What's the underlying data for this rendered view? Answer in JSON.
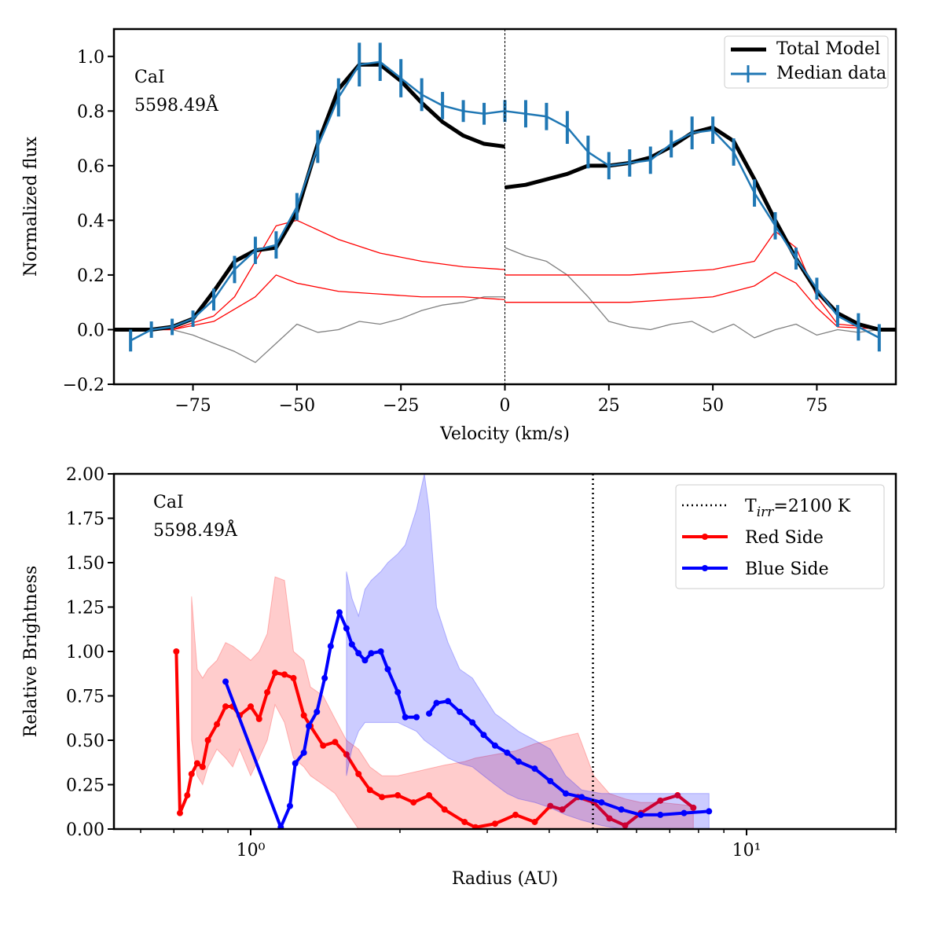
{
  "chart_data": [
    {
      "type": "line",
      "annotation": [
        "CaI",
        "5598.49Å"
      ],
      "xlabel": "Velocity (km/s)",
      "ylabel": "Normalized flux",
      "xlim": [
        -94,
        94
      ],
      "ylim": [
        -0.2,
        1.1
      ],
      "xticks": [
        {
          "value": -75,
          "label": "−75"
        },
        {
          "value": -50,
          "label": "−50"
        },
        {
          "value": -25,
          "label": "−25"
        },
        0,
        25,
        50,
        75
      ],
      "yticks": [
        {
          "value": -0.2,
          "label": "−0.2"
        },
        {
          "value": 0,
          "label": "0.0"
        },
        0.2,
        0.4,
        0.6,
        0.8,
        {
          "value": 1,
          "label": "1.0"
        }
      ],
      "vline": 0,
      "legend": "upper right",
      "series": [
        {
          "color": "#808080",
          "x": [
            -80,
            -75,
            -70,
            -65,
            -60,
            -55,
            -50,
            -45,
            -40,
            -35,
            -30,
            -25,
            -20,
            -15,
            -10,
            -5,
            0,
            0,
            0,
            5,
            10,
            15,
            20,
            25,
            30,
            35,
            40,
            45,
            50,
            55,
            60,
            65,
            70,
            75,
            80,
            85,
            90
          ],
          "values": [
            0,
            -0.02,
            -0.05,
            -0.08,
            -0.12,
            -0.05,
            0.02,
            -0.01,
            0,
            0.03,
            0.02,
            0.04,
            0.07,
            0.09,
            0.1,
            0.12,
            0.12,
            null,
            0.3,
            0.27,
            0.25,
            0.2,
            0.12,
            0.03,
            0.01,
            0,
            0.02,
            0.03,
            -0.01,
            0.02,
            -0.03,
            0,
            0.02,
            -0.02,
            0,
            -0.01,
            0
          ]
        },
        {
          "color": "#ff0000",
          "x": [
            -94,
            -80,
            -70,
            -65,
            -60,
            -55,
            -50,
            -40,
            -30,
            -20,
            -10,
            0,
            0,
            0,
            10,
            20,
            30,
            40,
            50,
            60,
            65,
            70,
            75,
            80,
            94
          ],
          "values": [
            0,
            0,
            0.05,
            0.12,
            0.25,
            0.38,
            0.4,
            0.33,
            0.28,
            0.25,
            0.23,
            0.22,
            null,
            0.2,
            0.2,
            0.2,
            0.2,
            0.21,
            0.22,
            0.25,
            0.36,
            0.3,
            0.12,
            0.02,
            0
          ]
        },
        {
          "color": "#ff0000",
          "x": [
            -94,
            -80,
            -70,
            -60,
            -55,
            -50,
            -40,
            -30,
            -20,
            -10,
            0,
            0,
            0,
            10,
            20,
            30,
            40,
            50,
            60,
            65,
            70,
            75,
            80,
            94
          ],
          "values": [
            0,
            0,
            0.03,
            0.12,
            0.2,
            0.17,
            0.14,
            0.13,
            0.12,
            0.12,
            0.11,
            null,
            0.1,
            0.1,
            0.1,
            0.1,
            0.11,
            0.12,
            0.16,
            0.21,
            0.17,
            0.08,
            0.01,
            0
          ]
        },
        {
          "name": "Total Model",
          "color": "#000000",
          "x": [
            -94,
            -85,
            -80,
            -75,
            -70,
            -65,
            -60,
            -55,
            -50,
            -45,
            -40,
            -35,
            -30,
            -25,
            -20,
            -15,
            -10,
            -5,
            0,
            0,
            0,
            5,
            10,
            15,
            20,
            25,
            30,
            35,
            40,
            45,
            50,
            55,
            60,
            65,
            70,
            75,
            80,
            85,
            90,
            94
          ],
          "values": [
            0,
            0,
            0.01,
            0.04,
            0.14,
            0.25,
            0.29,
            0.3,
            0.43,
            0.68,
            0.88,
            0.97,
            0.97,
            0.91,
            0.83,
            0.76,
            0.71,
            0.68,
            0.67,
            null,
            0.52,
            0.53,
            0.55,
            0.57,
            0.6,
            0.6,
            0.61,
            0.63,
            0.67,
            0.72,
            0.74,
            0.69,
            0.55,
            0.4,
            0.26,
            0.14,
            0.06,
            0.02,
            0,
            0
          ]
        },
        {
          "name": "Median data",
          "color": "#1f77b4",
          "x": [
            -90,
            -85,
            -80,
            -75,
            -70,
            -65,
            -60,
            -55,
            -50,
            -45,
            -40,
            -35,
            -30,
            -25,
            -20,
            -15,
            -10,
            -5,
            0,
            5,
            10,
            15,
            20,
            25,
            30,
            35,
            40,
            45,
            50,
            55,
            60,
            65,
            70,
            75,
            80,
            85,
            90
          ],
          "values": [
            -0.04,
            0,
            0.01,
            0.04,
            0.11,
            0.22,
            0.29,
            0.31,
            0.45,
            0.67,
            0.85,
            0.97,
            0.98,
            0.92,
            0.86,
            0.82,
            0.8,
            0.79,
            0.8,
            0.79,
            0.78,
            0.74,
            0.65,
            0.6,
            0.61,
            0.62,
            0.68,
            0.72,
            0.73,
            0.65,
            0.5,
            0.38,
            0.26,
            0.15,
            0.05,
            0.01,
            -0.03
          ],
          "errors": [
            0.04,
            0.03,
            0.03,
            0.03,
            0.04,
            0.05,
            0.05,
            0.05,
            0.05,
            0.06,
            0.07,
            0.08,
            0.07,
            0.07,
            0.06,
            0.05,
            0.04,
            0.04,
            0.04,
            0.05,
            0.05,
            0.06,
            0.06,
            0.05,
            0.05,
            0.05,
            0.05,
            0.06,
            0.05,
            0.05,
            0.05,
            0.05,
            0.04,
            0.04,
            0.04,
            0.05,
            0.05
          ]
        }
      ]
    },
    {
      "type": "line",
      "annotation": [
        "CaI",
        "5598.49Å"
      ],
      "xlabel": "Radius (AU)",
      "ylabel": "Relative Brightness",
      "xscale": "log",
      "xlim": [
        0.53,
        20
      ],
      "ylim": [
        0,
        2
      ],
      "xticks": [
        {
          "value": 1,
          "label": "10⁰"
        },
        {
          "value": 10,
          "label": "10¹"
        }
      ],
      "xminorticks": [
        0.6,
        0.7,
        0.8,
        0.9,
        2,
        3,
        4,
        5,
        6,
        7,
        8,
        9,
        20
      ],
      "yticks": [
        {
          "value": 0,
          "label": "0.00"
        },
        {
          "value": 0.25,
          "label": "0.25"
        },
        {
          "value": 0.5,
          "label": "0.50"
        },
        {
          "value": 0.75,
          "label": "0.75"
        },
        {
          "value": 1,
          "label": "1.00"
        },
        {
          "value": 1.25,
          "label": "1.25"
        },
        {
          "value": 1.5,
          "label": "1.50"
        },
        {
          "value": 1.75,
          "label": "1.75"
        },
        {
          "value": 2,
          "label": "2.00"
        }
      ],
      "threshold": {
        "x": 4.9,
        "label": "T",
        "label_sub": "irr",
        "label_rest": "=2100 K"
      },
      "legend": "upper right",
      "series": [
        {
          "name": "Red Side",
          "color": "#ff0000",
          "x": [
            0.708,
            0.72,
            0.745,
            0.76,
            0.78,
            0.8,
            0.82,
            0.855,
            0.89,
            0.92,
            0.95,
            1.0,
            1.04,
            1.08,
            1.12,
            1.17,
            1.22,
            1.28,
            1.32,
            1.4,
            1.48,
            1.56,
            1.65,
            1.74,
            1.84,
            1.98,
            2.13,
            2.29,
            2.46,
            2.7,
            2.84,
            3.11,
            3.42,
            3.74,
            4.02,
            4.25,
            4.57,
            4.92,
            5.29,
            5.69,
            6.12,
            6.7,
            7.26,
            7.81
          ],
          "values": [
            1.0,
            0.09,
            0.19,
            0.31,
            0.37,
            0.35,
            0.5,
            0.59,
            0.69,
            0.69,
            0.64,
            0.69,
            0.62,
            0.77,
            0.88,
            0.87,
            0.85,
            0.64,
            0.58,
            0.47,
            0.49,
            0.42,
            0.31,
            0.22,
            0.18,
            0.19,
            0.15,
            0.19,
            0.11,
            0.04,
            0.01,
            0.03,
            0.08,
            0.04,
            0.13,
            0.11,
            0.18,
            0.15,
            0.06,
            0.02,
            0.09,
            0.16,
            0.19,
            0.12
          ],
          "upper": [
            null,
            null,
            null,
            1.31,
            0.9,
            0.85,
            0.9,
            0.95,
            1.05,
            1.03,
            1.0,
            0.95,
            1.0,
            1.1,
            1.42,
            1.4,
            1.0,
            0.95,
            0.8,
            0.75,
            0.62,
            0.5,
            0.45,
            0.35,
            0.3,
            0.3,
            0.32,
            0.34,
            0.36,
            0.38,
            0.4,
            0.42,
            0.44,
            0.48,
            0.5,
            0.52,
            0.54,
            0.3,
            0.2,
            0.17,
            0.15,
            0.15,
            0.14,
            0.13
          ],
          "lower": [
            null,
            null,
            null,
            0.5,
            0.3,
            0.25,
            0.35,
            0.45,
            0.4,
            0.35,
            0.45,
            0.3,
            0.4,
            0.5,
            0.7,
            0.6,
            0.4,
            0.35,
            0.3,
            0.25,
            0.2,
            0.1,
            0,
            0,
            0,
            0,
            0,
            0,
            0,
            0,
            0,
            0,
            0,
            0,
            0,
            0,
            0,
            0,
            0,
            0,
            0,
            0,
            0,
            0
          ]
        },
        {
          "name": "Blue Side",
          "color": "#0000ff",
          "x": [
            0.89,
            1.15,
            1.2,
            1.23,
            1.28,
            1.31,
            1.36,
            1.41,
            1.45,
            1.51,
            1.56,
            1.6,
            1.65,
            1.7,
            1.75,
            1.83,
            1.89,
            1.98,
            2.05,
            2.16,
            2.24,
            2.29,
            2.37,
            2.5,
            2.64,
            2.8,
            2.95,
            3.11,
            3.29,
            3.47,
            3.74,
            4.02,
            4.32,
            4.65,
            5.1,
            5.59,
            6.12,
            6.7,
            7.48,
            8.4
          ],
          "values": [
            0.83,
            0.01,
            0.13,
            0.37,
            0.43,
            0.58,
            0.66,
            0.85,
            1.03,
            1.22,
            1.13,
            1.04,
            0.99,
            0.95,
            0.99,
            1.0,
            0.9,
            0.77,
            0.63,
            0.63,
            null,
            0.65,
            0.71,
            0.72,
            0.66,
            0.6,
            0.53,
            0.47,
            0.43,
            0.38,
            0.34,
            0.27,
            0.2,
            0.18,
            0.15,
            0.11,
            0.08,
            0.08,
            0.09,
            0.1
          ],
          "upper": [
            null,
            null,
            null,
            null,
            null,
            null,
            null,
            null,
            null,
            null,
            1.45,
            1.3,
            1.2,
            1.35,
            1.4,
            1.45,
            1.5,
            1.55,
            1.6,
            1.8,
            2.0,
            1.8,
            1.25,
            1.05,
            0.9,
            0.85,
            0.75,
            0.65,
            0.6,
            0.55,
            0.5,
            0.45,
            0.3,
            0.22,
            0.2,
            0.2,
            0.2,
            0.2,
            0.2,
            0.2
          ],
          "lower": [
            null,
            null,
            null,
            null,
            null,
            null,
            null,
            null,
            null,
            null,
            0.3,
            0.45,
            0.55,
            0.6,
            0.6,
            0.6,
            0.6,
            0.6,
            0.58,
            0.55,
            0.5,
            0.48,
            0.45,
            0.4,
            0.37,
            0.35,
            0.3,
            0.25,
            0.2,
            0.17,
            0.15,
            0.12,
            0.08,
            0.05,
            0.02,
            0,
            0,
            0,
            0,
            0
          ]
        }
      ]
    }
  ]
}
